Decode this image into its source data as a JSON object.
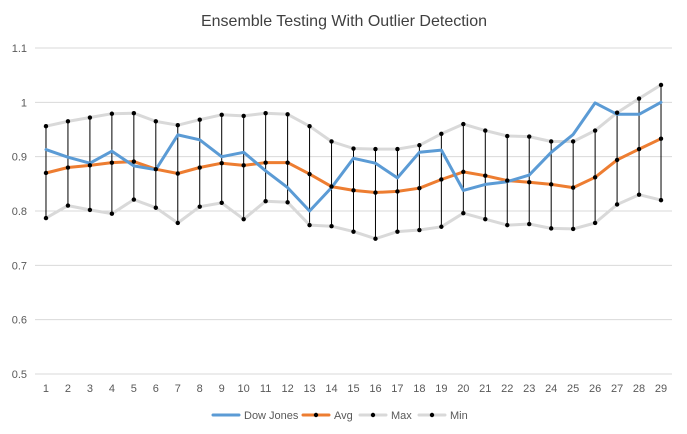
{
  "chart_data": {
    "type": "line",
    "title": "Ensemble Testing With Outlier Detection",
    "xlabel": "",
    "ylabel": "",
    "categories": [
      "1",
      "2",
      "3",
      "4",
      "5",
      "6",
      "7",
      "8",
      "9",
      "10",
      "11",
      "12",
      "13",
      "14",
      "15",
      "16",
      "17",
      "18",
      "19",
      "20",
      "21",
      "22",
      "23",
      "24",
      "25",
      "26",
      "27",
      "28",
      "29"
    ],
    "ylim": [
      0.5,
      1.1
    ],
    "yticks": [
      "0.5",
      "0.6",
      "0.7",
      "0.8",
      "0.9",
      "1",
      "1.1"
    ],
    "grid": true,
    "legend_position": "bottom",
    "error_bars": "vertical lines from Min to Max at each category",
    "series": [
      {
        "name": "Dow Jones",
        "color": "#5b9bd5",
        "marker": "none",
        "values": [
          0.913,
          0.899,
          0.888,
          0.91,
          0.883,
          0.876,
          0.94,
          0.931,
          0.9,
          0.908,
          0.874,
          0.843,
          0.8,
          0.843,
          0.897,
          0.888,
          0.861,
          0.908,
          0.912,
          0.838,
          0.849,
          0.854,
          0.866,
          0.908,
          0.941,
          0.999,
          0.978,
          0.978,
          1.0
        ]
      },
      {
        "name": "Avg",
        "color": "#ed7d31",
        "marker": "dot",
        "values": [
          0.87,
          0.88,
          0.884,
          0.889,
          0.891,
          0.877,
          0.869,
          0.88,
          0.888,
          0.884,
          0.889,
          0.889,
          0.868,
          0.845,
          0.838,
          0.834,
          0.836,
          0.842,
          0.858,
          0.872,
          0.865,
          0.856,
          0.853,
          0.849,
          0.843,
          0.862,
          0.894,
          0.914,
          0.933
        ]
      },
      {
        "name": "Max",
        "color": "#d9d9d9",
        "marker": "dot",
        "values": [
          0.956,
          0.965,
          0.972,
          0.979,
          0.98,
          0.965,
          0.958,
          0.968,
          0.977,
          0.975,
          0.98,
          0.978,
          0.956,
          0.928,
          0.915,
          0.914,
          0.914,
          0.921,
          0.942,
          0.96,
          0.948,
          0.938,
          0.937,
          0.928,
          0.928,
          0.948,
          0.981,
          1.007,
          1.032
        ]
      },
      {
        "name": "Min",
        "color": "#d9d9d9",
        "marker": "dot",
        "values": [
          0.787,
          0.81,
          0.802,
          0.795,
          0.821,
          0.806,
          0.778,
          0.808,
          0.815,
          0.785,
          0.818,
          0.816,
          0.774,
          0.772,
          0.762,
          0.749,
          0.762,
          0.765,
          0.771,
          0.796,
          0.785,
          0.774,
          0.776,
          0.768,
          0.767,
          0.778,
          0.812,
          0.83,
          0.82
        ]
      }
    ]
  }
}
